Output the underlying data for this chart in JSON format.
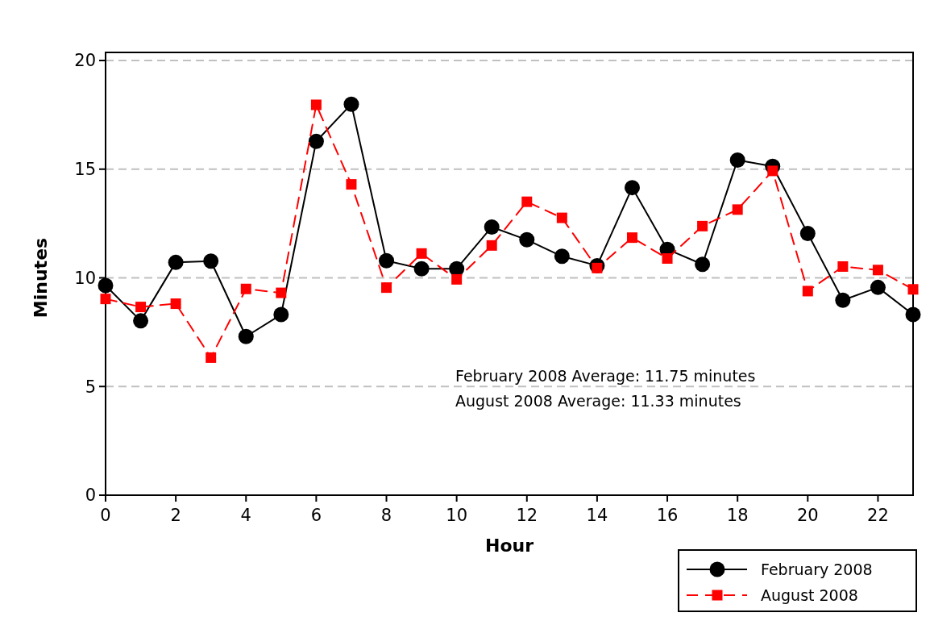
{
  "chart_data": {
    "type": "line",
    "xlabel": "Hour",
    "ylabel": "Minutes",
    "xlim": [
      0,
      23
    ],
    "xticks": [
      0,
      2,
      4,
      6,
      8,
      10,
      12,
      14,
      16,
      18,
      20,
      22
    ],
    "ylim": [
      0,
      20
    ],
    "yticks": [
      0,
      5,
      10,
      15,
      20
    ],
    "grid": "y",
    "legend": "bottom right",
    "x": [
      0,
      1,
      2,
      3,
      4,
      5,
      6,
      7,
      8,
      9,
      10,
      11,
      12,
      13,
      14,
      15,
      16,
      17,
      18,
      19,
      20,
      21,
      22,
      23
    ],
    "series": [
      {
        "name": "February 2008",
        "color": "#000000",
        "marker": "circle",
        "line_style": "solid",
        "values": [
          9.65,
          8.02,
          10.71,
          10.77,
          7.3,
          8.31,
          16.28,
          17.99,
          10.79,
          10.42,
          10.42,
          12.34,
          11.75,
          10.99,
          10.56,
          14.15,
          11.31,
          10.62,
          15.42,
          15.13,
          12.04,
          8.97,
          9.56,
          8.31
        ]
      },
      {
        "name": "August 2008",
        "color": "#ff0000",
        "marker": "square",
        "line_style": "dashed",
        "values": [
          9.03,
          8.66,
          8.81,
          6.33,
          9.49,
          9.31,
          17.96,
          14.3,
          9.55,
          11.12,
          9.93,
          11.49,
          13.5,
          12.76,
          10.45,
          11.85,
          10.89,
          12.38,
          13.14,
          14.92,
          9.39,
          10.52,
          10.36,
          9.47
        ]
      }
    ],
    "annotations": [
      "February 2008 Average: 11.75 minutes",
      "August 2008 Average: 11.33 minutes"
    ]
  }
}
